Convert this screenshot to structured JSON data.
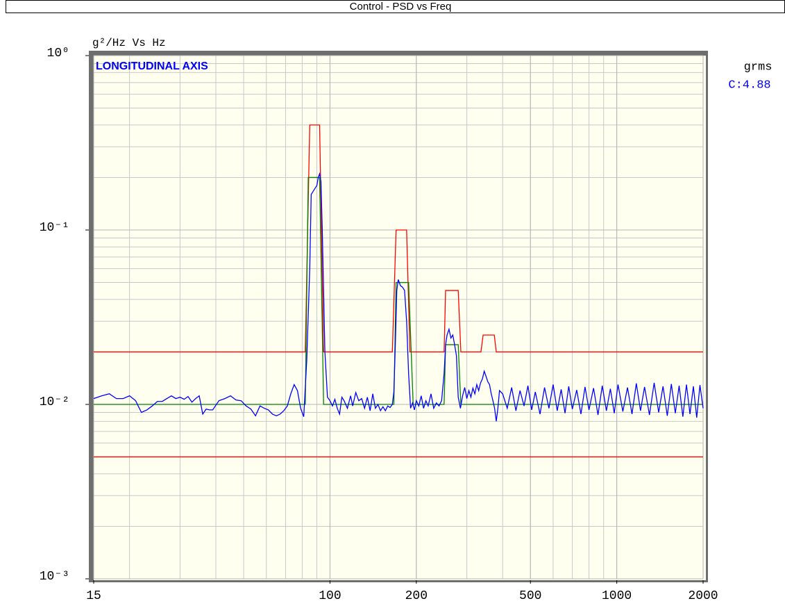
{
  "chart_data": {
    "type": "line",
    "title": "Control - PSD vs  Freq",
    "ylabel": "g²/Hz Vs Hz",
    "annotation": "LONGITUDINAL AXIS",
    "rms_header": "grms",
    "rms_label": "C:4.88",
    "xlog": true,
    "ylog": true,
    "grid": true,
    "xlim": [
      15,
      2000
    ],
    "ylim": [
      0.001,
      1
    ],
    "xticks": [
      15,
      100,
      200,
      500,
      1000,
      2000
    ],
    "yticks": [
      {
        "value": 1,
        "label": "10⁰"
      },
      {
        "value": 0.1,
        "label": "10⁻¹"
      },
      {
        "value": 0.01,
        "label": "10⁻²"
      },
      {
        "value": 0.001,
        "label": "10⁻³"
      }
    ],
    "series": [
      {
        "color": "#ff0000",
        "x": [
          15,
          82,
          85,
          92,
          95,
          165,
          170,
          185,
          190,
          250,
          253,
          280,
          286,
          336,
          342,
          374,
          380,
          2000
        ],
        "values": [
          0.02,
          0.02,
          0.4,
          0.4,
          0.02,
          0.02,
          0.1,
          0.1,
          0.02,
          0.02,
          0.045,
          0.045,
          0.02,
          0.02,
          0.025,
          0.025,
          0.02,
          0.02
        ]
      },
      {
        "color": "#ff0000",
        "x": [
          15,
          2000
        ],
        "values": [
          0.005,
          0.005
        ]
      },
      {
        "color": "#008000",
        "x": [
          15,
          82,
          84,
          92,
          95,
          167,
          170,
          188,
          195,
          250,
          253,
          280,
          286,
          2000
        ],
        "values": [
          0.01,
          0.01,
          0.2,
          0.2,
          0.01,
          0.01,
          0.05,
          0.05,
          0.01,
          0.01,
          0.022,
          0.022,
          0.01,
          0.01
        ]
      },
      {
        "color": "#0000ff",
        "x": [
          15,
          16,
          17,
          18,
          19,
          20,
          21,
          22,
          23,
          24,
          25,
          26,
          27,
          28,
          29,
          30,
          31,
          32,
          33,
          34,
          35,
          36,
          37,
          38,
          39,
          41,
          43,
          45,
          47,
          49,
          51,
          53,
          55,
          57,
          59,
          61,
          63,
          65,
          67,
          69,
          71,
          73,
          75,
          77,
          79,
          81,
          83,
          85,
          86,
          88,
          90,
          91,
          92,
          93,
          94,
          95,
          96,
          98,
          100,
          102,
          104,
          106,
          108,
          110,
          112,
          115,
          118,
          120,
          123,
          126,
          129,
          132,
          135,
          138,
          141,
          144,
          147,
          150,
          153,
          156,
          159,
          162,
          165,
          167,
          169,
          171,
          173,
          176,
          179,
          182,
          185,
          188,
          191,
          194,
          197,
          200,
          204,
          208,
          212,
          216,
          220,
          225,
          230,
          235,
          240,
          245,
          250,
          253,
          256,
          260,
          264,
          268,
          272,
          276,
          280,
          285,
          290,
          295,
          300,
          305,
          310,
          315,
          320,
          325,
          330,
          335,
          340,
          345,
          350,
          355,
          360,
          365,
          370,
          375,
          380,
          385,
          390,
          400,
          415,
          430,
          445,
          460,
          475,
          490,
          505,
          520,
          540,
          560,
          580,
          600,
          620,
          640,
          660,
          680,
          700,
          725,
          750,
          775,
          800,
          830,
          860,
          890,
          920,
          950,
          980,
          1010,
          1050,
          1090,
          1130,
          1170,
          1210,
          1250,
          1300,
          1350,
          1400,
          1450,
          1500,
          1550,
          1600,
          1650,
          1700,
          1750,
          1800,
          1850,
          1900,
          1950,
          2000
        ],
        "values": [
          0.0108,
          0.0112,
          0.0115,
          0.0108,
          0.0108,
          0.0112,
          0.0105,
          0.009,
          0.0093,
          0.0098,
          0.0104,
          0.0104,
          0.0108,
          0.0112,
          0.0108,
          0.011,
          0.0107,
          0.0111,
          0.0103,
          0.0108,
          0.0112,
          0.0088,
          0.0094,
          0.0093,
          0.0093,
          0.0105,
          0.0108,
          0.0112,
          0.0106,
          0.0105,
          0.0098,
          0.0094,
          0.0086,
          0.0098,
          0.0095,
          0.0093,
          0.0088,
          0.0086,
          0.0088,
          0.0092,
          0.0098,
          0.0115,
          0.013,
          0.012,
          0.0095,
          0.0085,
          0.018,
          0.06,
          0.16,
          0.17,
          0.18,
          0.2,
          0.21,
          0.19,
          0.1,
          0.045,
          0.02,
          0.011,
          0.0105,
          0.0098,
          0.0107,
          0.0095,
          0.0088,
          0.011,
          0.0105,
          0.0095,
          0.0112,
          0.0098,
          0.0117,
          0.0105,
          0.0108,
          0.0095,
          0.011,
          0.0092,
          0.0115,
          0.0095,
          0.01,
          0.0092,
          0.0097,
          0.0092,
          0.0098,
          0.0096,
          0.01,
          0.0118,
          0.022,
          0.045,
          0.052,
          0.048,
          0.047,
          0.045,
          0.03,
          0.015,
          0.0095,
          0.0102,
          0.0093,
          0.0105,
          0.0098,
          0.0112,
          0.0095,
          0.0105,
          0.0098,
          0.0115,
          0.0095,
          0.0102,
          0.0098,
          0.0105,
          0.015,
          0.022,
          0.025,
          0.027,
          0.024,
          0.025,
          0.022,
          0.019,
          0.011,
          0.0095,
          0.0112,
          0.0125,
          0.0108,
          0.012,
          0.011,
          0.0124,
          0.0115,
          0.013,
          0.012,
          0.0133,
          0.014,
          0.0155,
          0.0145,
          0.0135,
          0.013,
          0.0115,
          0.0105,
          0.0095,
          0.008,
          0.0095,
          0.012,
          0.0115,
          0.0095,
          0.0125,
          0.0092,
          0.012,
          0.0098,
          0.0128,
          0.0093,
          0.0118,
          0.0088,
          0.0125,
          0.0095,
          0.013,
          0.0092,
          0.0122,
          0.0089,
          0.0127,
          0.0094,
          0.0121,
          0.0088,
          0.0126,
          0.0093,
          0.0124,
          0.0087,
          0.0128,
          0.0092,
          0.0123,
          0.0089,
          0.013,
          0.0091,
          0.0125,
          0.0088,
          0.0132,
          0.0092,
          0.0126,
          0.0087,
          0.0133,
          0.009,
          0.0127,
          0.0086,
          0.0131,
          0.0089,
          0.0128,
          0.0085,
          0.013,
          0.0088,
          0.0127,
          0.0084,
          0.0129,
          0.0095
        ]
      }
    ]
  }
}
